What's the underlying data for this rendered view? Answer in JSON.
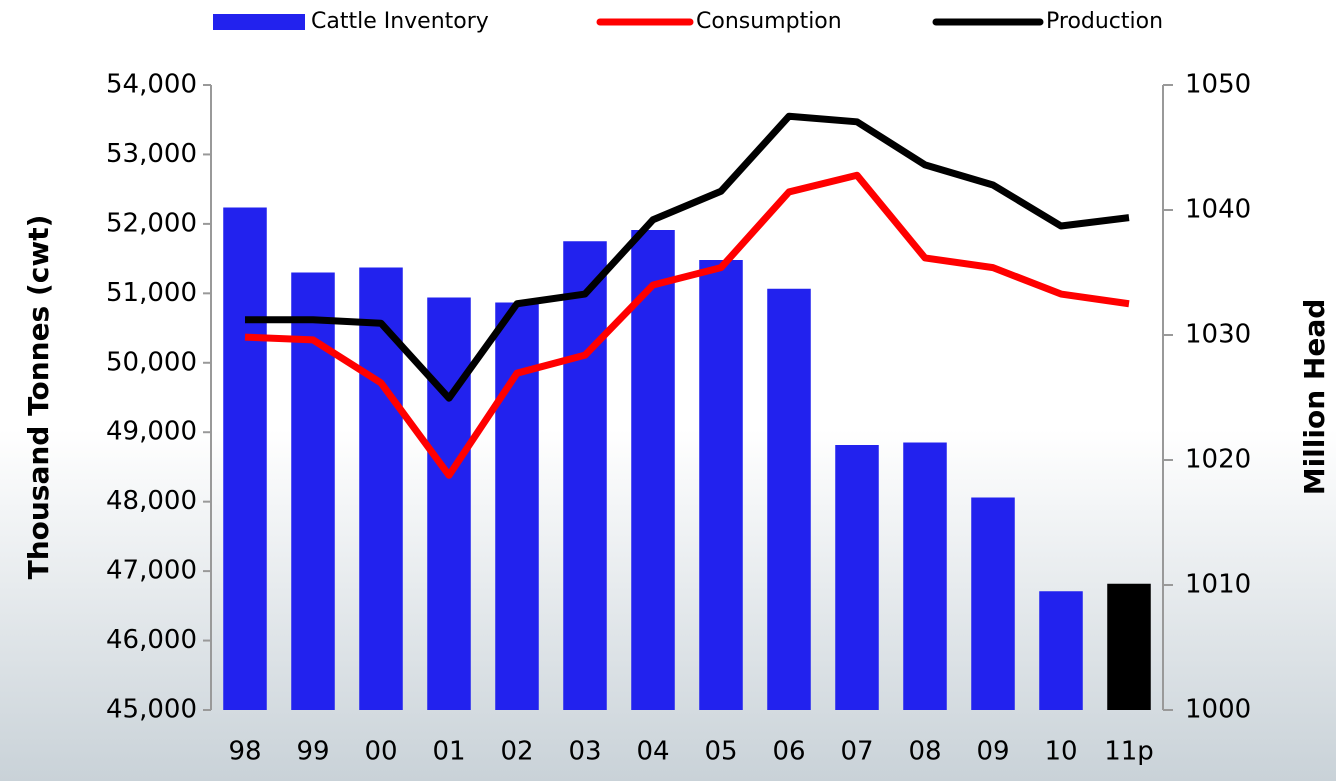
{
  "chart_data": {
    "type": "bar",
    "categories": [
      "98",
      "99",
      "00",
      "01",
      "02",
      "03",
      "04",
      "05",
      "06",
      "07",
      "08",
      "09",
      "10",
      "11p"
    ],
    "series": [
      {
        "name": "Cattle Inventory",
        "type": "bar",
        "axis": "y2",
        "color": "#2222ee",
        "colors": [
          "#2222ee",
          "#2222ee",
          "#2222ee",
          "#2222ee",
          "#2222ee",
          "#2222ee",
          "#2222ee",
          "#2222ee",
          "#2222ee",
          "#2222ee",
          "#2222ee",
          "#2222ee",
          "#2222ee",
          "#000000"
        ],
        "values": [
          1040.2,
          1035.0,
          1035.4,
          1033.0,
          1032.6,
          1037.5,
          1038.4,
          1036.0,
          1033.7,
          1021.2,
          1021.4,
          1017.0,
          1009.5,
          1010.1
        ]
      },
      {
        "name": "Consumption",
        "type": "line",
        "color": "#ff0000",
        "values": [
          50370,
          50330,
          49710,
          48380,
          49850,
          50110,
          51120,
          51370,
          52460,
          52700,
          51510,
          51370,
          50990,
          50850
        ]
      },
      {
        "name": "Production",
        "type": "line",
        "color": "#000000",
        "values": [
          50620,
          50620,
          50570,
          49490,
          50850,
          50990,
          52060,
          52470,
          53550,
          53470,
          52850,
          52560,
          51970,
          52090
        ]
      }
    ],
    "ylabel": "Thousand Tonnes (cwt)",
    "y2label": "Million Head",
    "ylim": [
      45000,
      54000
    ],
    "yticks": [
      {
        "value": 45000,
        "label": "45,000"
      },
      {
        "value": 46000,
        "label": "46,000"
      },
      {
        "value": 47000,
        "label": "47,000"
      },
      {
        "value": 48000,
        "label": "48,000"
      },
      {
        "value": 49000,
        "label": "49,000"
      },
      {
        "value": 50000,
        "label": "50,000"
      },
      {
        "value": 51000,
        "label": "51,000"
      },
      {
        "value": 52000,
        "label": "52,000"
      },
      {
        "value": 53000,
        "label": "53,000"
      },
      {
        "value": 54000,
        "label": "54,000"
      }
    ],
    "y2lim": [
      1000,
      1050
    ],
    "y2ticks": [
      1000,
      1010,
      1020,
      1030,
      1040,
      1050
    ],
    "legend": "top"
  }
}
